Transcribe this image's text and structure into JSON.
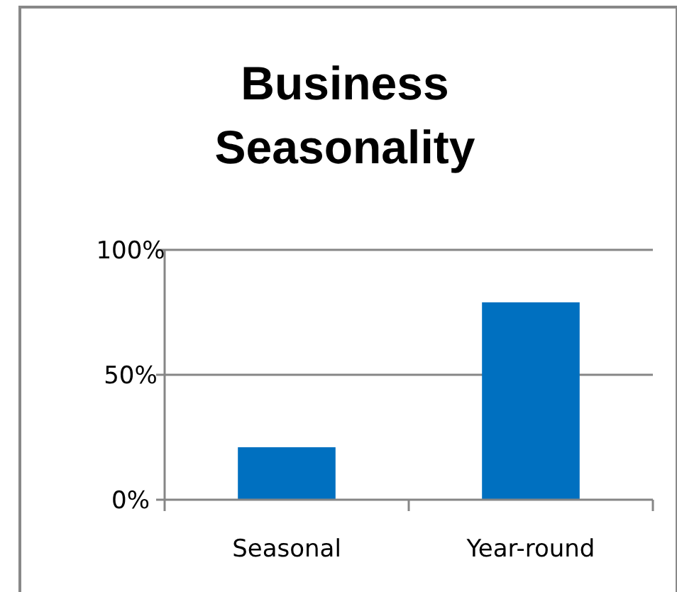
{
  "chart_data": {
    "type": "bar",
    "title": "Business Seasonality",
    "categories": [
      "Seasonal",
      "Year-round"
    ],
    "values": [
      21,
      79
    ],
    "color": "#0070c0",
    "ylim": [
      0,
      100
    ],
    "yticks": [
      {
        "value": 0,
        "label": "0%"
      },
      {
        "value": 50,
        "label": "50%"
      },
      {
        "value": 100,
        "label": "100%"
      }
    ],
    "grid": "y"
  }
}
